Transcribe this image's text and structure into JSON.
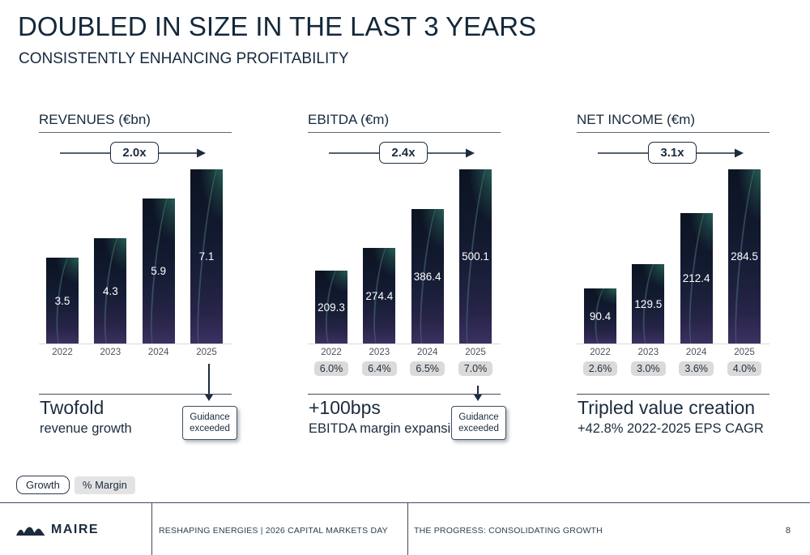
{
  "header": {
    "title": "DOUBLED IN SIZE IN THE LAST 3 YEARS",
    "subtitle": "CONSISTENTLY ENHANCING PROFITABILITY"
  },
  "chart_data": [
    {
      "type": "bar",
      "title": "REVENUES (€bn)",
      "multiplier": "2.0x",
      "categories": [
        "2022",
        "2023",
        "2024",
        "2025"
      ],
      "values": [
        3.5,
        4.3,
        5.9,
        7.1
      ],
      "value_labels": [
        "3.5",
        "4.3",
        "5.9",
        "7.1"
      ],
      "margins": null,
      "ylim": [
        0,
        7.1
      ],
      "grid": false,
      "legend_position": "none",
      "caption_big": "Twofold",
      "caption_small": "revenue growth",
      "guidance_label": "Guidance exceeded"
    },
    {
      "type": "bar",
      "title": "EBITDA (€m)",
      "multiplier": "2.4x",
      "categories": [
        "2022",
        "2023",
        "2024",
        "2025"
      ],
      "values": [
        209.3,
        274.4,
        386.4,
        500.1
      ],
      "value_labels": [
        "209.3",
        "274.4",
        "386.4",
        "500.1"
      ],
      "margins": [
        "6.0%",
        "6.4%",
        "6.5%",
        "7.0%"
      ],
      "ylim": [
        0,
        500.1
      ],
      "grid": false,
      "legend_position": "none",
      "caption_big": "+100bps",
      "caption_small": "EBITDA margin expansion",
      "guidance_label": "Guidance exceeded"
    },
    {
      "type": "bar",
      "title": "NET INCOME (€m)",
      "multiplier": "3.1x",
      "categories": [
        "2022",
        "2023",
        "2024",
        "2025"
      ],
      "values": [
        90.4,
        129.5,
        212.4,
        284.5
      ],
      "value_labels": [
        "90.4",
        "129.5",
        "212.4",
        "284.5"
      ],
      "margins": [
        "2.6%",
        "3.0%",
        "3.6%",
        "4.0%"
      ],
      "ylim": [
        0,
        284.5
      ],
      "grid": false,
      "legend_position": "none",
      "caption_big": "Tripled value creation",
      "caption_small": "+42.8% 2022-2025 EPS CAGR",
      "guidance_label": null
    }
  ],
  "legend": {
    "growth": "Growth",
    "margin": "% Margin"
  },
  "footer": {
    "brand": "MAIRE",
    "event": "RESHAPING ENERGIES | 2026 CAPITAL MARKETS DAY",
    "section": "THE PROGRESS: CONSOLIDATING GROWTH",
    "page": "8"
  },
  "colors": {
    "text_navy": "#1b2c3e",
    "bar_top": "#0c1322",
    "bar_teal_glow": "#3a967d",
    "bar_bottom_purple": "#3a3160",
    "margin_badge_bg": "#dadada",
    "baseline_gray": "#d9d9d9"
  }
}
